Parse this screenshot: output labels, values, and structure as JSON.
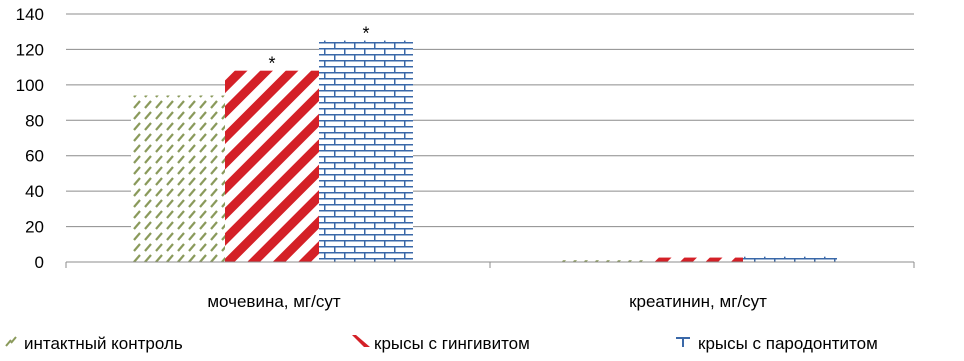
{
  "chart_data": {
    "type": "bar",
    "categories": [
      "мочевина, мг/сут",
      "креатинин, мг/сут"
    ],
    "series": [
      {
        "name": "интактный контроль",
        "values": [
          94,
          1
        ],
        "color": "#8a9a5b",
        "pattern": "diagonal-dashes",
        "annotations": [
          "",
          ""
        ]
      },
      {
        "name": "крысы с гингивитом",
        "values": [
          108,
          2.5
        ],
        "color": "#d42027",
        "pattern": "diagonal-stripes",
        "annotations": [
          "*",
          ""
        ]
      },
      {
        "name": "крысы с пародонтитом",
        "values": [
          125,
          3
        ],
        "color": "#3a68a8",
        "pattern": "brick",
        "annotations": [
          "*",
          ""
        ]
      }
    ],
    "ylim": [
      0,
      140
    ],
    "yticks": [
      "0",
      "20",
      "40",
      "60",
      "80",
      "100",
      "120",
      "140"
    ],
    "grid": true,
    "legend_position": "bottom"
  }
}
